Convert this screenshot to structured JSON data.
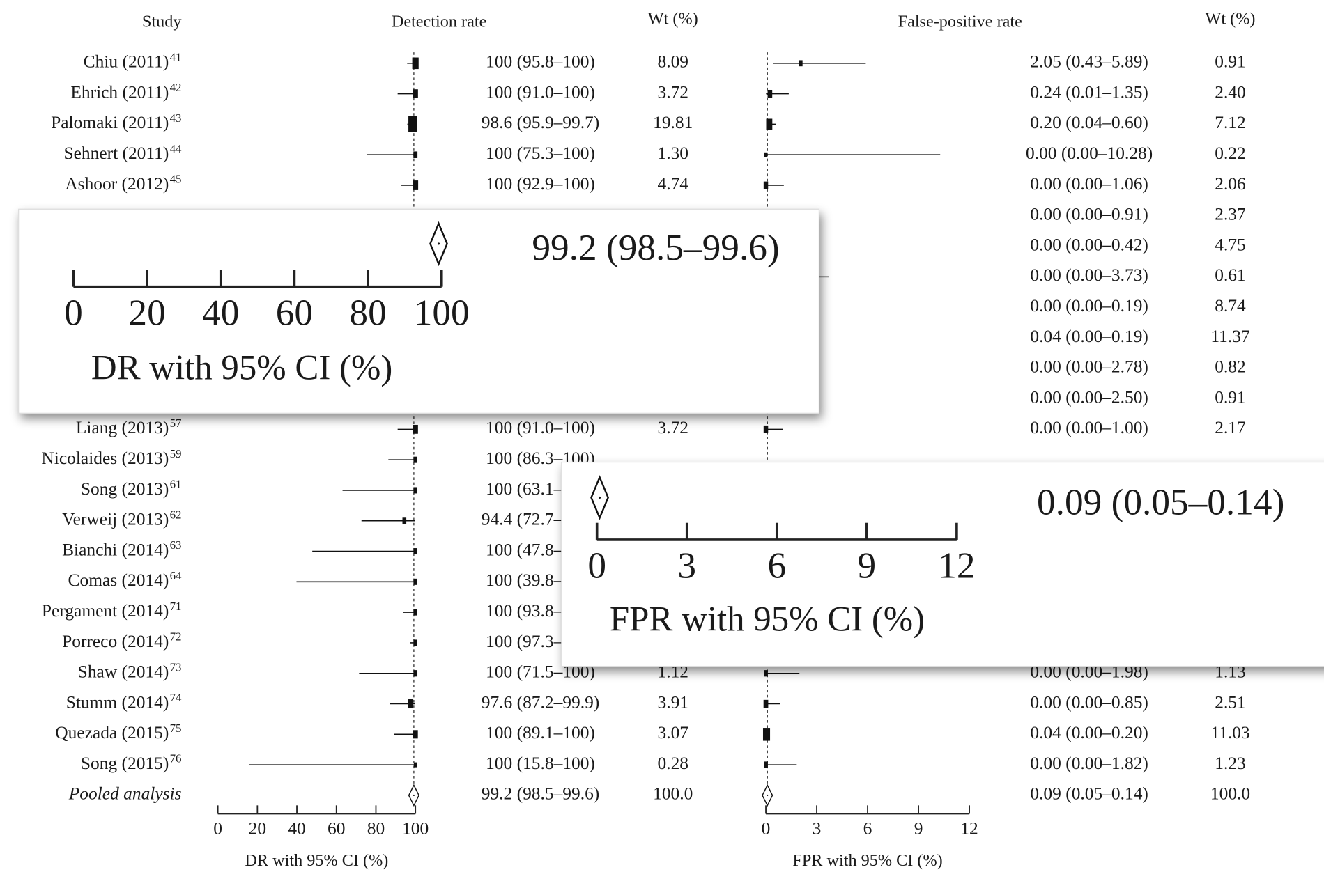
{
  "chart_data": {
    "type": "forest",
    "column_header": "Study",
    "studies": [
      "Chiu (2011)",
      "Ehrich (2011)",
      "Palomaki (2011)",
      "Sehnert (2011)",
      "Ashoor (2012)",
      null,
      null,
      null,
      null,
      null,
      null,
      null,
      "Liang (2013)",
      "Nicolaides (2013)",
      "Song (2013)",
      "Verweij (2013)",
      "Bianchi (2014)",
      "Comas (2014)",
      "Pergament (2014)",
      "Porreco (2014)",
      "Shaw (2014)",
      "Stumm (2014)",
      "Quezada (2015)",
      "Song (2015)"
    ],
    "refs": [
      "41",
      "42",
      "43",
      "44",
      "45",
      null,
      null,
      null,
      null,
      null,
      null,
      null,
      "57",
      "59",
      "61",
      "62",
      "63",
      "64",
      "71",
      "72",
      "73",
      "74",
      "75",
      "76"
    ],
    "pooled_label": "Pooled analysis",
    "panels": [
      {
        "title": "Detection rate",
        "weight_header": "Wt (%)",
        "xlabel": "DR with 95% CI (%)",
        "xlim": [
          0,
          100
        ],
        "xticks": [
          0,
          20,
          40,
          60,
          80,
          100
        ],
        "estimates": [
          100,
          100,
          98.6,
          100,
          100,
          null,
          null,
          null,
          null,
          null,
          null,
          null,
          100,
          100,
          100,
          94.4,
          100,
          100,
          100,
          100,
          100,
          97.6,
          100,
          100
        ],
        "lower": [
          95.8,
          91.0,
          95.9,
          75.3,
          92.9,
          null,
          null,
          null,
          null,
          null,
          null,
          null,
          91.0,
          86.3,
          63.1,
          72.7,
          47.8,
          39.8,
          93.8,
          97.3,
          71.5,
          87.2,
          89.1,
          15.8
        ],
        "upper": [
          100,
          100,
          99.7,
          100,
          100,
          null,
          null,
          null,
          null,
          null,
          null,
          null,
          100,
          100,
          100,
          99.9,
          100,
          100,
          100,
          100,
          100,
          99.9,
          100,
          100
        ],
        "value_labels": [
          "100 (95.8–100)",
          "100 (91.0–100)",
          "98.6 (95.9–99.7)",
          "100 (75.3–100)",
          "100 (92.9–100)",
          null,
          null,
          null,
          null,
          null,
          null,
          null,
          "100 (91.0–100)",
          "100 (86.3–100)",
          "100 (63.1–100)",
          "94.4 (72.7–99.9)",
          "100 (47.8–100)",
          "100 (39.8–100)",
          "100 (93.8–100)",
          "100 (97.3–100)",
          "100 (71.5–100)",
          "97.6 (87.2–99.9)",
          "100 (89.1–100)",
          "100 (15.8–100)"
        ],
        "weights": [
          8.09,
          3.72,
          19.81,
          1.3,
          4.74,
          null,
          null,
          null,
          null,
          null,
          null,
          null,
          3.72,
          null,
          null,
          null,
          null,
          null,
          null,
          null,
          1.12,
          3.91,
          3.07,
          0.28
        ],
        "weight_labels": [
          "8.09",
          "3.72",
          "19.81",
          "1.30",
          "4.74",
          null,
          null,
          null,
          null,
          null,
          null,
          null,
          "3.72",
          null,
          null,
          null,
          null,
          null,
          null,
          null,
          "1.12",
          "3.91",
          "3.07",
          "0.28"
        ],
        "pooled": {
          "estimate": 99.2,
          "lower": 98.5,
          "upper": 99.6,
          "label": "99.2 (98.5–99.6)",
          "weight": 100,
          "weight_label": "100.0"
        }
      },
      {
        "title": "False-positive rate",
        "weight_header": "Wt (%)",
        "xlabel": "FPR with 95% CI (%)",
        "xlim": [
          0,
          12
        ],
        "xticks": [
          0,
          3,
          6,
          9,
          12
        ],
        "estimates": [
          2.05,
          0.24,
          0.2,
          0.0,
          0.0,
          0.0,
          0.0,
          0.0,
          0.0,
          0.04,
          0.0,
          0.0,
          0.0,
          null,
          null,
          null,
          null,
          null,
          null,
          null,
          0.0,
          0.0,
          0.04,
          0.0
        ],
        "lower": [
          0.43,
          0.01,
          0.04,
          0.0,
          0.0,
          0.0,
          0.0,
          0.0,
          0.0,
          0.0,
          0.0,
          0.0,
          0.0,
          null,
          null,
          null,
          null,
          null,
          null,
          null,
          0.0,
          0.0,
          0.0,
          0.0
        ],
        "upper": [
          5.89,
          1.35,
          0.6,
          10.28,
          1.06,
          0.91,
          0.42,
          3.73,
          0.19,
          0.19,
          2.78,
          2.5,
          1.0,
          null,
          null,
          null,
          null,
          null,
          null,
          null,
          1.98,
          0.85,
          0.2,
          1.82
        ],
        "value_labels": [
          "2.05 (0.43–5.89)",
          "0.24 (0.01–1.35)",
          "0.20 (0.04–0.60)",
          "0.00 (0.00–10.28)",
          "0.00 (0.00–1.06)",
          "0.00 (0.00–0.91)",
          "0.00 (0.00–0.42)",
          "0.00 (0.00–3.73)",
          "0.00 (0.00–0.19)",
          "0.04 (0.00–0.19)",
          "0.00 (0.00–2.78)",
          "0.00 (0.00–2.50)",
          "0.00 (0.00–1.00)",
          null,
          null,
          null,
          null,
          null,
          null,
          null,
          "0.00 (0.00–1.98)",
          "0.00 (0.00–0.85)",
          "0.04 (0.00–0.20)",
          "0.00 (0.00–1.82)"
        ],
        "weights": [
          0.91,
          2.4,
          7.12,
          0.22,
          2.06,
          2.37,
          4.75,
          0.61,
          8.74,
          11.37,
          0.82,
          0.91,
          2.17,
          null,
          null,
          null,
          null,
          null,
          null,
          null,
          1.13,
          2.51,
          11.03,
          1.23
        ],
        "weight_labels": [
          "0.91",
          "2.40",
          "7.12",
          "0.22",
          "2.06",
          "2.37",
          "4.75",
          "0.61",
          "8.74",
          "11.37",
          "0.82",
          "0.91",
          "2.17",
          null,
          null,
          null,
          null,
          null,
          null,
          null,
          "1.13",
          "2.51",
          "11.03",
          "1.23"
        ],
        "pooled": {
          "estimate": 0.09,
          "lower": 0.05,
          "upper": 0.14,
          "label": "0.09 (0.05–0.14)",
          "weight": 100,
          "weight_label": "100.0"
        }
      }
    ]
  }
}
